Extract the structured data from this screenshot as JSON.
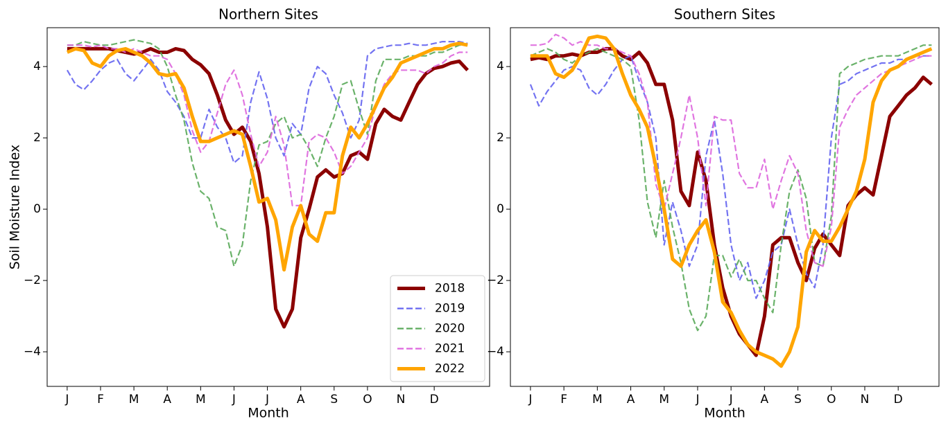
{
  "chart_data": [
    {
      "type": "line",
      "title": "Northern Sites",
      "xlabel": "Month",
      "ylabel": "Soil Moisture Index",
      "legend": "lower right",
      "x": [
        0,
        0.25,
        0.5,
        0.75,
        1,
        1.25,
        1.5,
        1.75,
        2,
        2.25,
        2.5,
        2.75,
        3,
        3.25,
        3.5,
        3.75,
        4,
        4.25,
        4.5,
        4.75,
        5,
        5.25,
        5.5,
        5.75,
        6,
        6.25,
        6.5,
        6.75,
        7,
        7.25,
        7.5,
        7.75,
        8,
        8.25,
        8.5,
        8.75,
        9,
        9.25,
        9.5,
        9.75,
        10,
        10.25,
        10.5,
        10.75,
        11,
        11.25,
        11.5,
        11.75,
        12
      ],
      "xlim": [
        -0.6,
        12.66
      ],
      "xticks": [
        {
          "value": 0,
          "label": "J"
        },
        {
          "value": 1,
          "label": "F"
        },
        {
          "value": 2,
          "label": "M"
        },
        {
          "value": 3,
          "label": "A"
        },
        {
          "value": 4,
          "label": "M"
        },
        {
          "value": 5,
          "label": "J"
        },
        {
          "value": 6,
          "label": "J"
        },
        {
          "value": 7,
          "label": "A"
        },
        {
          "value": 8,
          "label": "S"
        },
        {
          "value": 9,
          "label": "O"
        },
        {
          "value": 10,
          "label": "N"
        },
        {
          "value": 11,
          "label": "D"
        }
      ],
      "ylim": [
        -4.97,
        5.09
      ],
      "yticks": [
        {
          "value": -4,
          "label": "−4"
        },
        {
          "value": -2,
          "label": "−2"
        },
        0,
        2,
        4
      ],
      "series": [
        {
          "name": "2018",
          "color": "#8b0000",
          "linestyle": "solid",
          "values": [
            4.5,
            4.5,
            4.5,
            4.5,
            4.5,
            4.5,
            4.45,
            4.4,
            4.35,
            4.4,
            4.5,
            4.4,
            4.4,
            4.5,
            4.45,
            4.2,
            4.05,
            3.8,
            3.2,
            2.5,
            2.1,
            2.3,
            1.9,
            1.0,
            -0.5,
            -2.8,
            -3.3,
            -2.8,
            -0.8,
            0.0,
            0.9,
            1.1,
            0.9,
            1.0,
            1.5,
            1.6,
            1.4,
            2.4,
            2.8,
            2.6,
            2.5,
            3.0,
            3.5,
            3.8,
            3.95,
            4.0,
            4.1,
            4.15,
            3.9
          ]
        },
        {
          "name": "2019",
          "color": "#6464f0",
          "linestyle": "dashed",
          "values": [
            3.9,
            3.5,
            3.35,
            3.6,
            3.9,
            4.1,
            4.2,
            3.8,
            3.6,
            3.9,
            4.2,
            3.9,
            3.3,
            3.0,
            2.6,
            2.0,
            2.0,
            2.8,
            2.3,
            2.0,
            1.3,
            1.5,
            3.0,
            3.85,
            3.1,
            2.0,
            1.5,
            2.4,
            2.1,
            3.4,
            4.0,
            3.8,
            3.2,
            2.7,
            2.0,
            2.5,
            4.3,
            4.5,
            4.55,
            4.6,
            4.6,
            4.65,
            4.6,
            4.6,
            4.65,
            4.7,
            4.7,
            4.7,
            4.65
          ]
        },
        {
          "name": "2020",
          "color": "#5aaa5a",
          "linestyle": "dashed",
          "values": [
            4.6,
            4.6,
            4.7,
            4.65,
            4.6,
            4.6,
            4.65,
            4.7,
            4.75,
            4.7,
            4.65,
            4.5,
            4.0,
            3.2,
            2.5,
            1.3,
            0.5,
            0.3,
            -0.5,
            -0.6,
            -1.6,
            -1.0,
            0.8,
            1.8,
            1.9,
            2.4,
            2.6,
            2.0,
            2.1,
            1.7,
            1.2,
            2.0,
            2.6,
            3.5,
            3.6,
            2.8,
            2.1,
            3.6,
            4.2,
            4.2,
            4.2,
            4.3,
            4.3,
            4.3,
            4.4,
            4.4,
            4.5,
            4.6,
            4.6
          ]
        },
        {
          "name": "2021",
          "color": "#dd66dd",
          "linestyle": "dashed",
          "values": [
            4.6,
            4.6,
            4.6,
            4.55,
            4.6,
            4.5,
            4.5,
            4.4,
            4.5,
            4.4,
            4.3,
            4.3,
            4.2,
            3.8,
            3.2,
            2.2,
            1.6,
            1.9,
            2.7,
            3.5,
            3.9,
            3.2,
            2.1,
            1.2,
            1.6,
            2.6,
            1.8,
            0.1,
            0.1,
            1.9,
            2.1,
            2.0,
            1.6,
            1.0,
            1.2,
            1.6,
            2.0,
            2.9,
            3.5,
            3.8,
            3.9,
            3.9,
            3.9,
            3.8,
            4.0,
            4.1,
            4.3,
            4.4,
            4.4
          ]
        },
        {
          "name": "2022",
          "color": "#ffa500",
          "linestyle": "solid",
          "values": [
            4.4,
            4.5,
            4.45,
            4.1,
            4.0,
            4.3,
            4.45,
            4.5,
            4.4,
            4.3,
            4.1,
            3.8,
            3.75,
            3.8,
            3.4,
            2.6,
            1.9,
            1.9,
            2.0,
            2.1,
            2.2,
            2.1,
            1.2,
            0.2,
            0.3,
            -0.3,
            -1.7,
            -0.5,
            0.1,
            -0.7,
            -0.9,
            -0.1,
            -0.1,
            1.5,
            2.3,
            2.0,
            2.4,
            2.9,
            3.4,
            3.7,
            4.1,
            4.2,
            4.3,
            4.4,
            4.5,
            4.5,
            4.6,
            4.65,
            4.6
          ]
        }
      ]
    },
    {
      "type": "line",
      "title": "Southern Sites",
      "xlabel": "Month",
      "x": [
        0,
        0.25,
        0.5,
        0.75,
        1,
        1.25,
        1.5,
        1.75,
        2,
        2.25,
        2.5,
        2.75,
        3,
        3.25,
        3.5,
        3.75,
        4,
        4.25,
        4.5,
        4.75,
        5,
        5.25,
        5.5,
        5.75,
        6,
        6.25,
        6.5,
        6.75,
        7,
        7.25,
        7.5,
        7.75,
        8,
        8.25,
        8.5,
        8.75,
        9,
        9.25,
        9.5,
        9.75,
        10,
        10.25,
        10.5,
        10.75,
        11,
        11.25,
        11.5,
        11.75,
        12
      ],
      "xlim": [
        -0.6,
        12.22
      ],
      "xticks": [
        {
          "value": 0,
          "label": "J"
        },
        {
          "value": 1,
          "label": "F"
        },
        {
          "value": 2,
          "label": "M"
        },
        {
          "value": 3,
          "label": "A"
        },
        {
          "value": 4,
          "label": "M"
        },
        {
          "value": 5,
          "label": "J"
        },
        {
          "value": 6,
          "label": "J"
        },
        {
          "value": 7,
          "label": "A"
        },
        {
          "value": 8,
          "label": "S"
        },
        {
          "value": 9,
          "label": "O"
        },
        {
          "value": 10,
          "label": "N"
        },
        {
          "value": 11,
          "label": "D"
        }
      ],
      "ylim": [
        -4.97,
        5.09
      ],
      "yticks": [
        {
          "value": -4,
          "label": "−4"
        },
        {
          "value": -2,
          "label": "−2"
        },
        0,
        2,
        4
      ],
      "series": [
        {
          "name": "2018",
          "color": "#8b0000",
          "linestyle": "solid",
          "values": [
            4.2,
            4.25,
            4.2,
            4.3,
            4.3,
            4.35,
            4.3,
            4.4,
            4.4,
            4.5,
            4.5,
            4.3,
            4.2,
            4.4,
            4.1,
            3.5,
            3.5,
            2.5,
            0.5,
            0.1,
            1.6,
            0.8,
            -1.0,
            -2.2,
            -3.0,
            -3.5,
            -3.8,
            -4.1,
            -3.0,
            -1.0,
            -0.8,
            -0.8,
            -1.5,
            -2.0,
            -1.1,
            -0.7,
            -1.0,
            -1.3,
            0.1,
            0.4,
            0.6,
            0.4,
            1.5,
            2.6,
            2.9,
            3.2,
            3.4,
            3.7,
            3.5
          ]
        },
        {
          "name": "2019",
          "color": "#6464f0",
          "linestyle": "dashed",
          "values": [
            3.5,
            2.9,
            3.3,
            3.6,
            3.9,
            4.0,
            3.9,
            3.4,
            3.2,
            3.5,
            3.9,
            4.2,
            4.3,
            3.6,
            3.0,
            2.0,
            -1.0,
            0.2,
            -0.6,
            -1.6,
            -1.0,
            1.5,
            2.5,
            1.0,
            -1.0,
            -2.0,
            -1.5,
            -2.5,
            -2.0,
            -1.2,
            -1.0,
            0.0,
            -1.0,
            -1.8,
            -2.2,
            -1.0,
            2.0,
            3.5,
            3.6,
            3.8,
            3.9,
            4.0,
            4.1,
            4.1,
            4.2,
            4.2,
            4.3,
            4.3,
            4.3
          ]
        },
        {
          "name": "2020",
          "color": "#5aaa5a",
          "linestyle": "dashed",
          "values": [
            4.3,
            4.4,
            4.5,
            4.4,
            4.2,
            4.1,
            4.3,
            4.4,
            4.5,
            4.4,
            4.3,
            4.2,
            4.0,
            2.5,
            0.2,
            -0.8,
            0.8,
            -0.5,
            -1.5,
            -2.8,
            -3.4,
            -3.0,
            -1.3,
            -1.3,
            -1.9,
            -1.4,
            -2.0,
            -2.0,
            -2.5,
            -2.9,
            -1.0,
            0.5,
            1.1,
            0.3,
            -1.5,
            -1.6,
            -0.2,
            3.8,
            4.0,
            4.1,
            4.2,
            4.25,
            4.3,
            4.3,
            4.3,
            4.4,
            4.5,
            4.6,
            4.6
          ]
        },
        {
          "name": "2021",
          "color": "#dd66dd",
          "linestyle": "dashed",
          "values": [
            4.6,
            4.6,
            4.65,
            4.9,
            4.8,
            4.6,
            4.7,
            4.6,
            4.6,
            4.5,
            4.5,
            4.4,
            4.3,
            3.8,
            3.0,
            0.7,
            0.0,
            1.0,
            2.0,
            3.2,
            2.0,
            0.1,
            2.6,
            2.5,
            2.5,
            1.0,
            0.6,
            0.6,
            1.4,
            0.0,
            0.8,
            1.5,
            1.0,
            -0.6,
            -1.5,
            -1.6,
            -0.5,
            2.3,
            2.8,
            3.2,
            3.4,
            3.6,
            3.8,
            3.9,
            4.0,
            4.1,
            4.2,
            4.3,
            4.3
          ]
        },
        {
          "name": "2022",
          "color": "#ffa500",
          "linestyle": "solid",
          "values": [
            4.3,
            4.3,
            4.3,
            3.8,
            3.7,
            3.9,
            4.3,
            4.8,
            4.85,
            4.8,
            4.5,
            3.8,
            3.2,
            2.8,
            2.3,
            1.2,
            0.0,
            -1.4,
            -1.6,
            -1.0,
            -0.6,
            -0.3,
            -1.2,
            -2.6,
            -2.9,
            -3.4,
            -3.8,
            -4.0,
            -4.1,
            -4.2,
            -4.4,
            -4.0,
            -3.3,
            -1.2,
            -0.6,
            -0.9,
            -0.9,
            -0.5,
            0.0,
            0.5,
            1.4,
            3.0,
            3.6,
            3.9,
            4.0,
            4.2,
            4.3,
            4.4,
            4.5
          ]
        }
      ]
    }
  ]
}
